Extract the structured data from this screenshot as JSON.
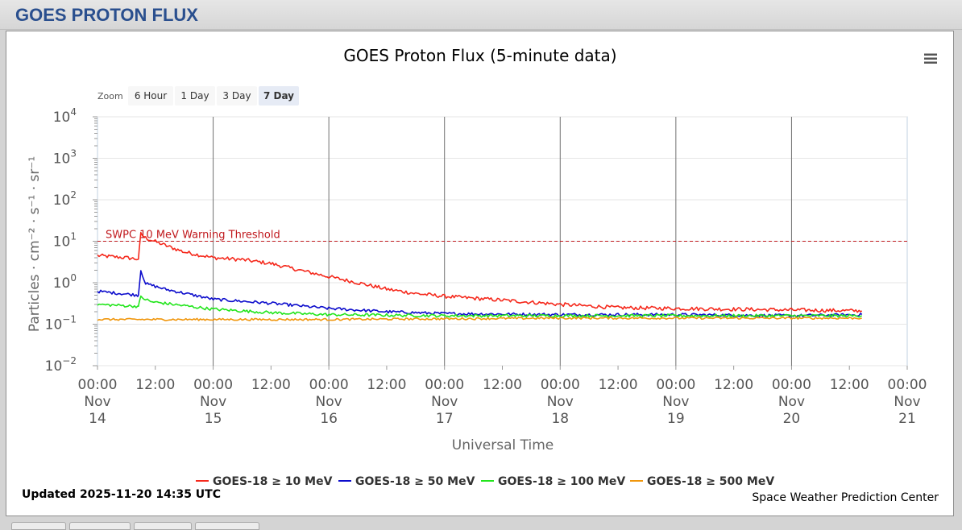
{
  "header": {
    "title": "GOES PROTON FLUX"
  },
  "chart_data": {
    "type": "line",
    "title": "GOES Proton Flux (5-minute data)",
    "xlabel": "Universal Time",
    "ylabel": "Particles · cm⁻² · s⁻¹ · sr⁻¹",
    "y_scale": "log",
    "ylim": [
      0.01,
      10000
    ],
    "y_ticks": [
      {
        "base": "10",
        "exp": "4"
      },
      {
        "base": "10",
        "exp": "3"
      },
      {
        "base": "10",
        "exp": "2"
      },
      {
        "base": "10",
        "exp": "1"
      },
      {
        "base": "10",
        "exp": "0"
      },
      {
        "base": "10",
        "exp": "−1"
      },
      {
        "base": "10",
        "exp": "−2"
      }
    ],
    "xlim": [
      "2025-11-14 00:00",
      "2025-11-21 00:00"
    ],
    "x_ticks": [
      {
        "time": "00:00",
        "month": "Nov",
        "day": "14"
      },
      {
        "time": "12:00"
      },
      {
        "time": "00:00",
        "month": "Nov",
        "day": "15"
      },
      {
        "time": "12:00"
      },
      {
        "time": "00:00",
        "month": "Nov",
        "day": "16"
      },
      {
        "time": "12:00"
      },
      {
        "time": "00:00",
        "month": "Nov",
        "day": "17"
      },
      {
        "time": "12:00"
      },
      {
        "time": "00:00",
        "month": "Nov",
        "day": "18"
      },
      {
        "time": "12:00"
      },
      {
        "time": "00:00",
        "month": "Nov",
        "day": "19"
      },
      {
        "time": "12:00"
      },
      {
        "time": "00:00",
        "month": "Nov",
        "day": "20"
      },
      {
        "time": "12:00"
      },
      {
        "time": "00:00",
        "month": "Nov",
        "day": "21"
      }
    ],
    "threshold": {
      "label": "SWPC 10 MeV Warning Threshold",
      "value": 10,
      "color": "#c0181c"
    },
    "zoom": {
      "label": "Zoom",
      "buttons": [
        "6 Hour",
        "1 Day",
        "3 Day",
        "7 Day"
      ],
      "selected": "7 Day"
    },
    "legend_position": "bottom",
    "series": [
      {
        "name": "GOES-18 ≥ 10 MeV",
        "color": "#f5291c",
        "points": [
          [
            "2025-11-14 00:00",
            4.5
          ],
          [
            "2025-11-14 06:00",
            4.0
          ],
          [
            "2025-11-14 08:30",
            3.7
          ],
          [
            "2025-11-14 09:00",
            15
          ],
          [
            "2025-11-14 10:00",
            12
          ],
          [
            "2025-11-14 14:00",
            8
          ],
          [
            "2025-11-14 18:00",
            5.5
          ],
          [
            "2025-11-15 00:00",
            4.0
          ],
          [
            "2025-11-15 06:00",
            3.6
          ],
          [
            "2025-11-15 12:00",
            2.9
          ],
          [
            "2025-11-15 18:00",
            2.0
          ],
          [
            "2025-11-16 00:00",
            1.4
          ],
          [
            "2025-11-16 06:00",
            1.0
          ],
          [
            "2025-11-16 12:00",
            0.7
          ],
          [
            "2025-11-16 18:00",
            0.55
          ],
          [
            "2025-11-17 00:00",
            0.47
          ],
          [
            "2025-11-17 12:00",
            0.38
          ],
          [
            "2025-11-18 00:00",
            0.3
          ],
          [
            "2025-11-18 12:00",
            0.25
          ],
          [
            "2025-11-19 00:00",
            0.24
          ],
          [
            "2025-11-19 12:00",
            0.23
          ],
          [
            "2025-11-20 00:00",
            0.22
          ],
          [
            "2025-11-20 14:35",
            0.21
          ]
        ]
      },
      {
        "name": "GOES-18 ≥ 50 MeV",
        "color": "#0c0ccc",
        "points": [
          [
            "2025-11-14 00:00",
            0.62
          ],
          [
            "2025-11-14 08:30",
            0.5
          ],
          [
            "2025-11-14 09:00",
            2.0
          ],
          [
            "2025-11-14 10:00",
            0.95
          ],
          [
            "2025-11-14 14:00",
            0.7
          ],
          [
            "2025-11-15 00:00",
            0.4
          ],
          [
            "2025-11-15 12:00",
            0.32
          ],
          [
            "2025-11-16 00:00",
            0.24
          ],
          [
            "2025-11-16 12:00",
            0.2
          ],
          [
            "2025-11-17 00:00",
            0.18
          ],
          [
            "2025-11-18 00:00",
            0.17
          ],
          [
            "2025-11-19 00:00",
            0.17
          ],
          [
            "2025-11-20 00:00",
            0.16
          ],
          [
            "2025-11-20 14:35",
            0.17
          ]
        ]
      },
      {
        "name": "GOES-18 ≥ 100 MeV",
        "color": "#22e51c",
        "points": [
          [
            "2025-11-14 00:00",
            0.3
          ],
          [
            "2025-11-14 08:30",
            0.27
          ],
          [
            "2025-11-14 09:00",
            0.45
          ],
          [
            "2025-11-14 11:00",
            0.35
          ],
          [
            "2025-11-15 00:00",
            0.23
          ],
          [
            "2025-11-15 12:00",
            0.19
          ],
          [
            "2025-11-16 00:00",
            0.17
          ],
          [
            "2025-11-17 00:00",
            0.16
          ],
          [
            "2025-11-18 00:00",
            0.16
          ],
          [
            "2025-11-19 00:00",
            0.16
          ],
          [
            "2025-11-20 00:00",
            0.16
          ],
          [
            "2025-11-20 14:35",
            0.16
          ]
        ]
      },
      {
        "name": "GOES-18 ≥ 500 MeV",
        "color": "#f0960c",
        "points": [
          [
            "2025-11-14 00:00",
            0.13
          ],
          [
            "2025-11-15 00:00",
            0.13
          ],
          [
            "2025-11-16 00:00",
            0.13
          ],
          [
            "2025-11-17 00:00",
            0.135
          ],
          [
            "2025-11-18 00:00",
            0.14
          ],
          [
            "2025-11-19 00:00",
            0.14
          ],
          [
            "2025-11-20 00:00",
            0.14
          ],
          [
            "2025-11-20 14:35",
            0.14
          ]
        ]
      }
    ]
  },
  "footer": {
    "updated": "Updated 2025-11-20 14:35 UTC",
    "credit": "Space Weather Prediction Center"
  },
  "menu_icon": "hamburger-menu-icon"
}
